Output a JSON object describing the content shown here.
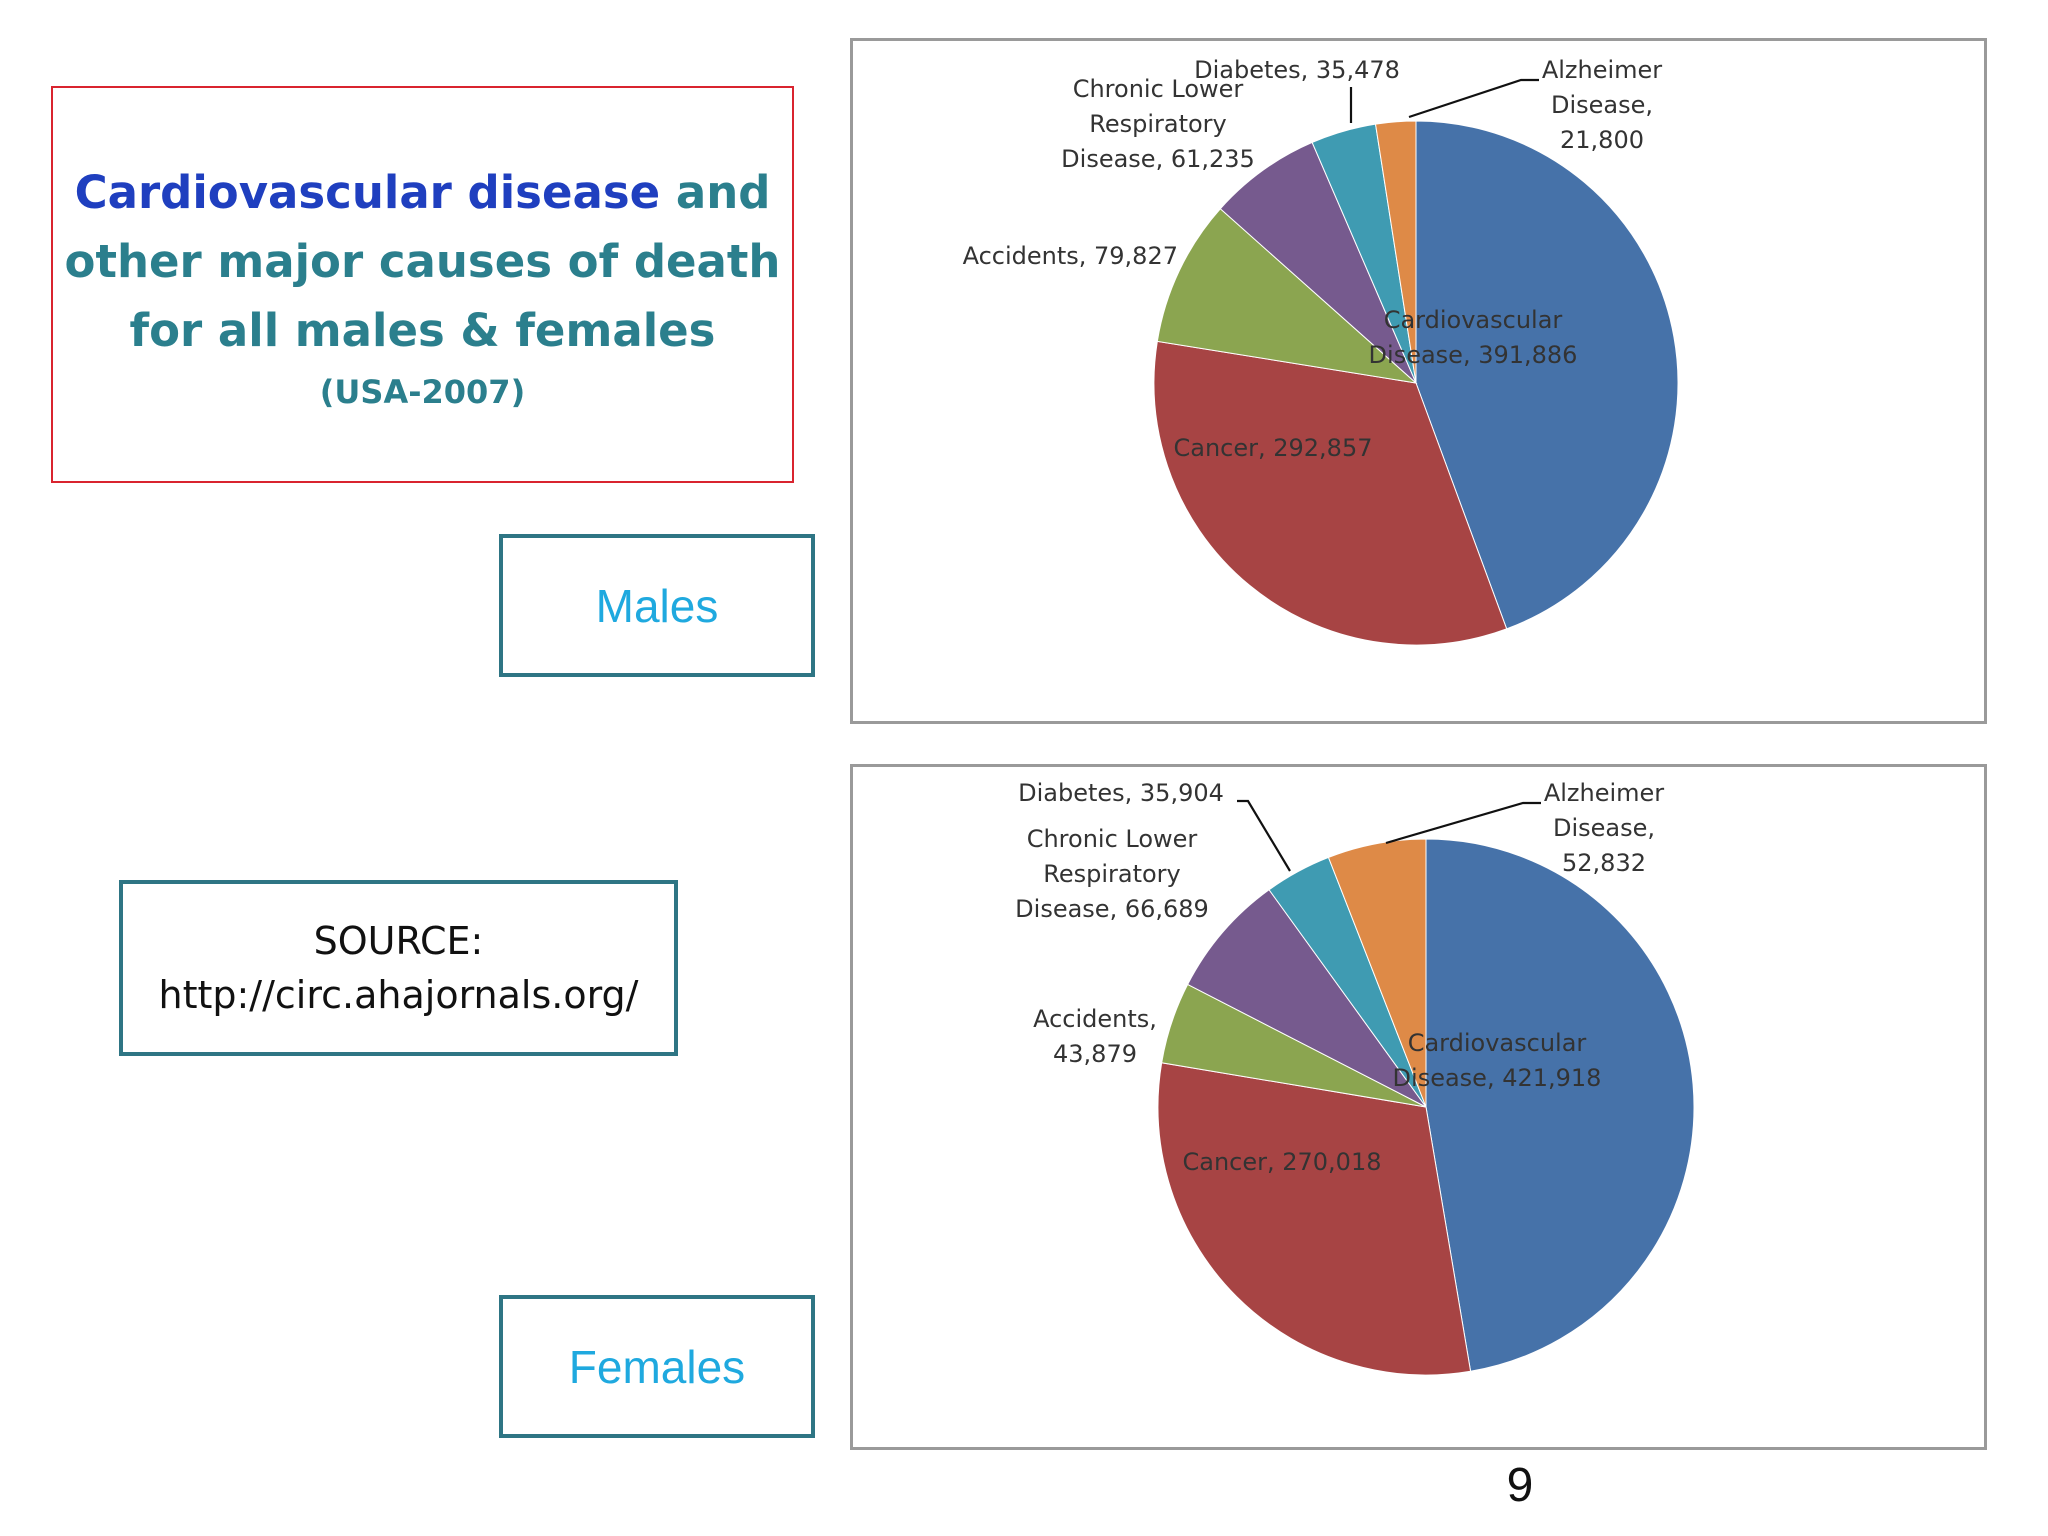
{
  "title": {
    "emph": "Cardiovascular disease",
    "line1_rest": " and",
    "line2": "other major causes of death",
    "line3": "for all males & females",
    "subtitle": "(USA-2007)"
  },
  "labels": {
    "males": "Males",
    "females": "Females"
  },
  "source": {
    "line1": "SOURCE:",
    "line2": "http://circ.ahajornals.org/"
  },
  "page_number": "9",
  "colors": {
    "cardiovascular": "#4672a9",
    "cancer": "#a74444",
    "accidents": "#8ba550",
    "clrd": "#765a8e",
    "diabetes": "#3f9bb2",
    "alzheimer": "#de8a47"
  },
  "chart_data": [
    {
      "type": "pie",
      "title": "",
      "slices": [
        {
          "key": "cardiovascular",
          "name": "Cardiovascular Disease",
          "value": 391886,
          "label_lines": [
            "Cardiovascular",
            "Disease, 391,886"
          ]
        },
        {
          "key": "cancer",
          "name": "Cancer",
          "value": 292857,
          "label_lines": [
            "Cancer, 292,857"
          ]
        },
        {
          "key": "accidents",
          "name": "Accidents",
          "value": 79827,
          "label_lines": [
            "Accidents, 79,827"
          ]
        },
        {
          "key": "clrd",
          "name": "Chronic Lower Respiratory Disease",
          "value": 61235,
          "label_lines": [
            "Chronic Lower",
            "Respiratory",
            "Disease, 61,235"
          ]
        },
        {
          "key": "diabetes",
          "name": "Diabetes",
          "value": 35478,
          "label_lines": [
            "Diabetes, 35,478"
          ]
        },
        {
          "key": "alzheimer",
          "name": "Alzheimer Disease",
          "value": 21800,
          "label_lines": [
            "Alzheimer",
            "Disease,",
            "21,800"
          ]
        }
      ]
    },
    {
      "type": "pie",
      "title": "",
      "slices": [
        {
          "key": "cardiovascular",
          "name": "Cardiovascular Disease",
          "value": 421918,
          "label_lines": [
            "Cardiovascular",
            "Disease, 421,918"
          ]
        },
        {
          "key": "cancer",
          "name": "Cancer",
          "value": 270018,
          "label_lines": [
            "Cancer, 270,018"
          ]
        },
        {
          "key": "accidents",
          "name": "Accidents",
          "value": 43879,
          "label_lines": [
            "Accidents,",
            "43,879"
          ]
        },
        {
          "key": "clrd",
          "name": "Chronic Lower Respiratory Disease",
          "value": 66689,
          "label_lines": [
            "Chronic Lower",
            "Respiratory",
            "Disease, 66,689"
          ]
        },
        {
          "key": "diabetes",
          "name": "Diabetes",
          "value": 35904,
          "label_lines": [
            "Diabetes, 35,904"
          ]
        },
        {
          "key": "alzheimer",
          "name": "Alzheimer Disease",
          "value": 52832,
          "label_lines": [
            "Alzheimer",
            "Disease,",
            "52,832"
          ]
        }
      ]
    }
  ]
}
